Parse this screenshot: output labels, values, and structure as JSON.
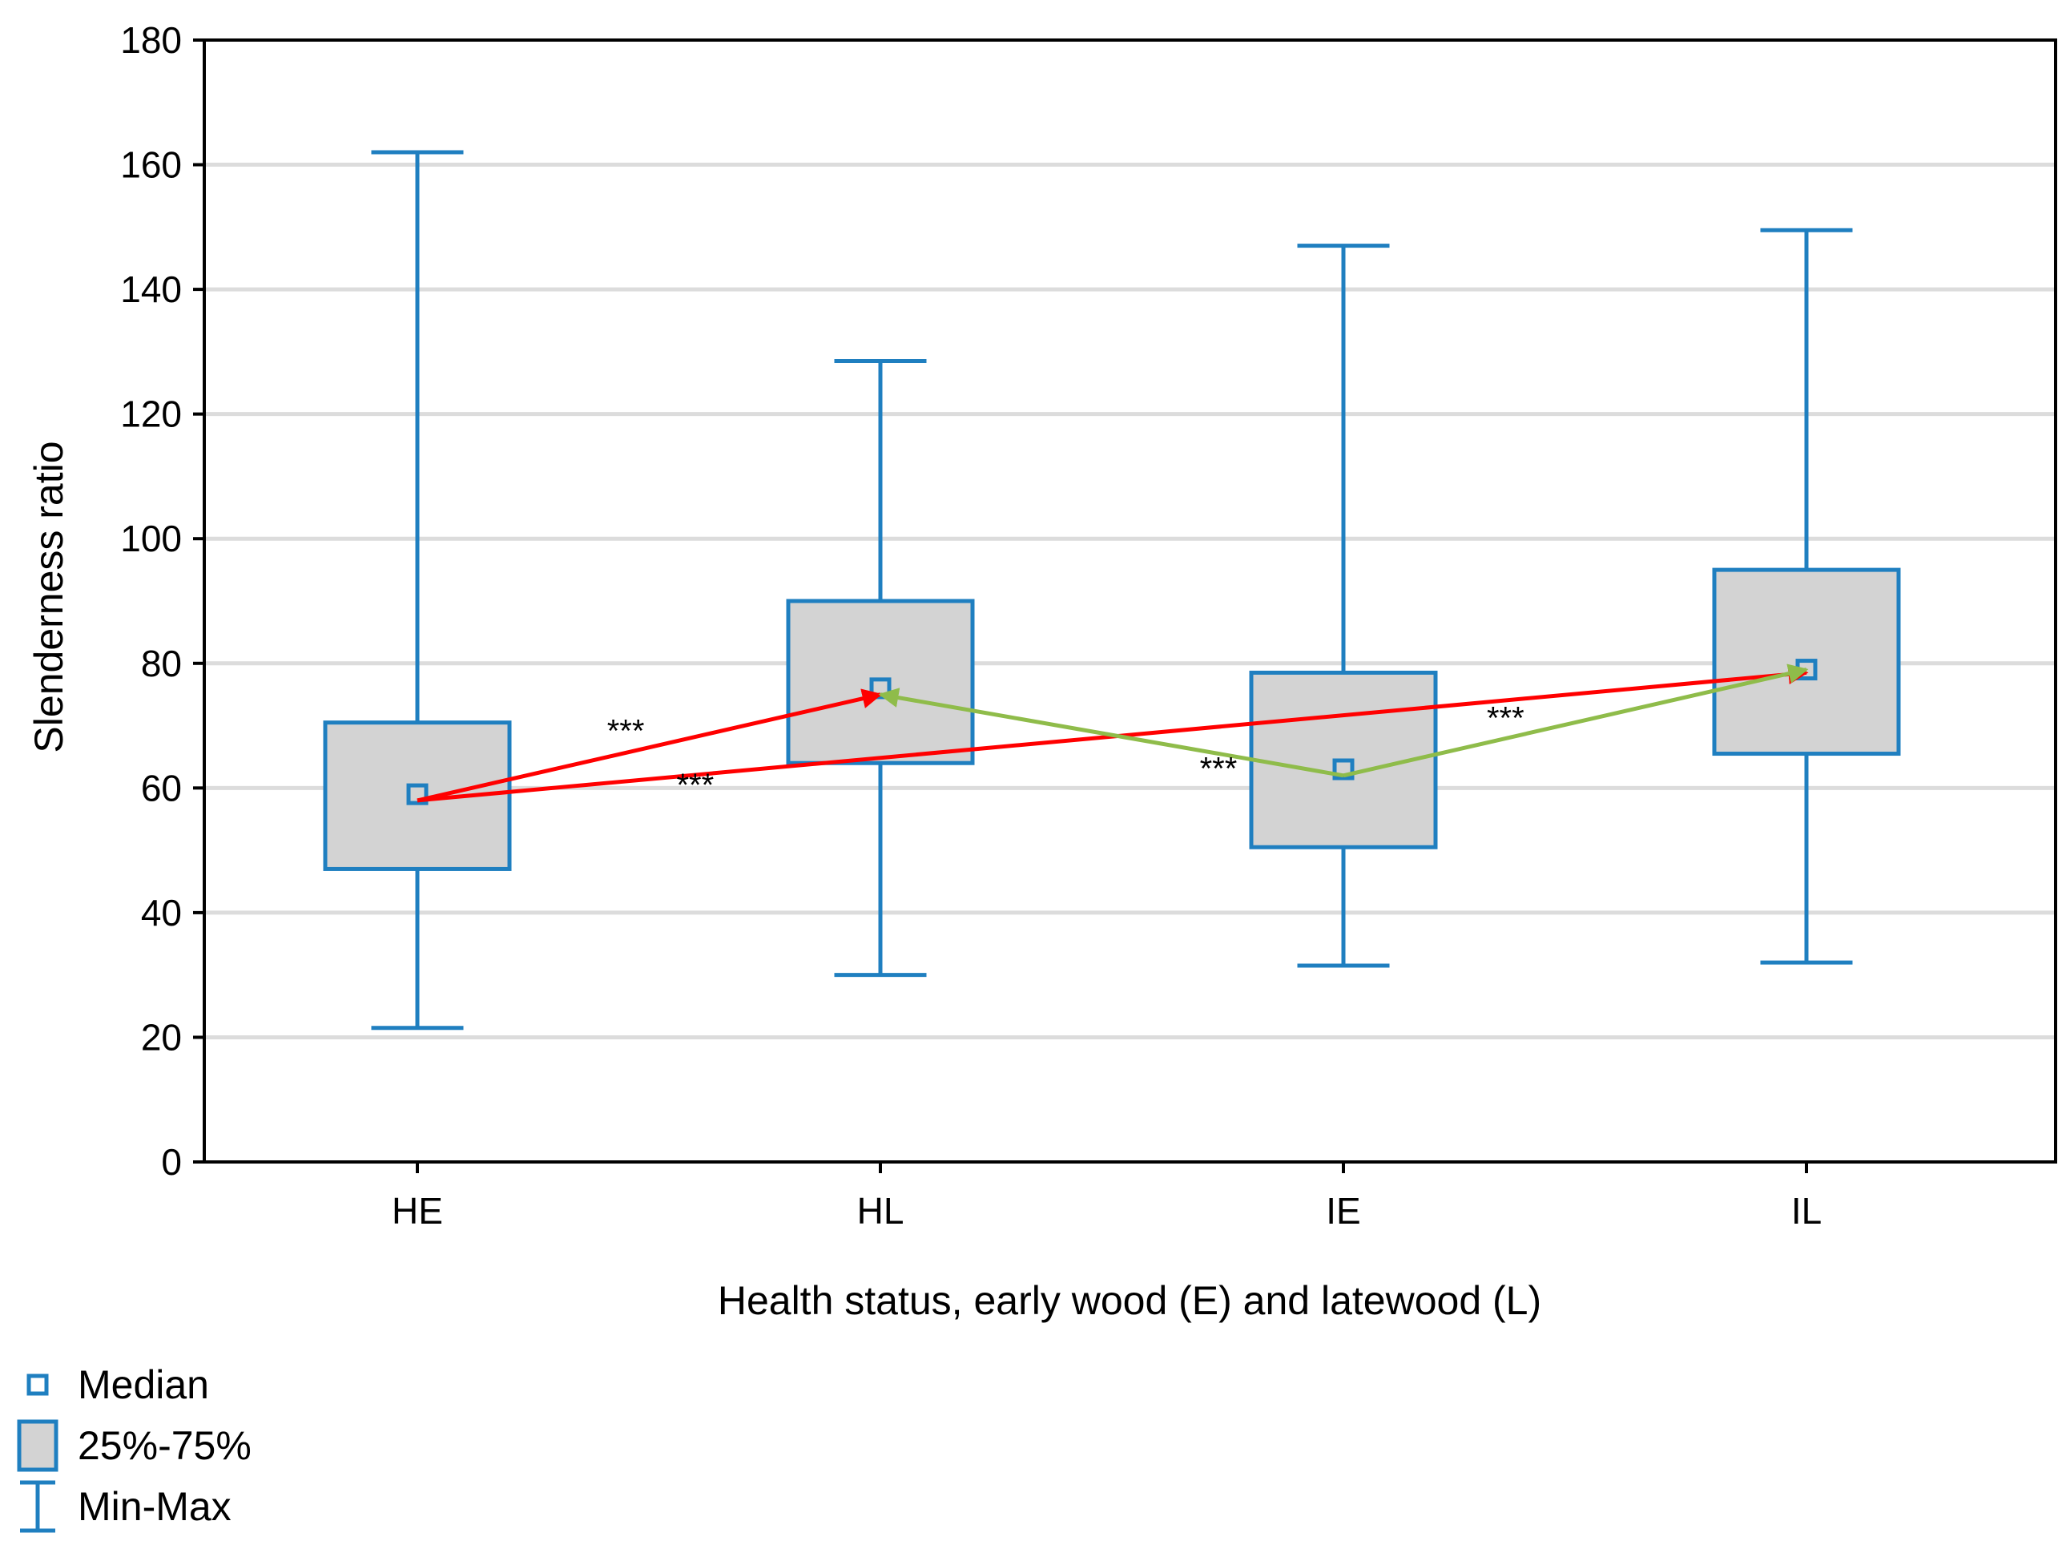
{
  "chart_data": {
    "type": "box",
    "xlabel": "Health status, early wood (E) and latewood (L)",
    "ylabel": "Slenderness ratio",
    "ylim": [
      0,
      180
    ],
    "yticks": [
      0,
      20,
      40,
      60,
      80,
      100,
      120,
      140,
      160,
      180
    ],
    "grid": true,
    "categories": [
      "HE",
      "HL",
      "IE",
      "IL"
    ],
    "boxes": [
      {
        "category": "HE",
        "min": 21.5,
        "q1": 47,
        "median": 59,
        "q3": 70.5,
        "max": 162
      },
      {
        "category": "HL",
        "min": 30,
        "q1": 64,
        "median": 76,
        "q3": 90,
        "max": 128.5
      },
      {
        "category": "IE",
        "min": 31.5,
        "q1": 50.5,
        "median": 63,
        "q3": 78.5,
        "max": 147
      },
      {
        "category": "IL",
        "min": 32,
        "q1": 65.5,
        "median": 79,
        "q3": 95,
        "max": 149.5
      }
    ],
    "comparisons": [
      {
        "from": "HE",
        "to": "HL",
        "from_value": 58,
        "to_value": 75,
        "color": "#ff0000",
        "label": "***",
        "double_arrow": false,
        "label_at": 0.45,
        "label_offset": -14
      },
      {
        "from": "HE",
        "to": "IL",
        "from_value": 58,
        "to_value": 78.5,
        "color": "#ff0000",
        "label": "***",
        "double_arrow": false,
        "label_at": 0.2,
        "label_offset": 26
      },
      {
        "from": "IE",
        "to": "HL",
        "from_value": 62,
        "to_value": 75,
        "color": "#8fbc4a",
        "label": "***",
        "double_arrow": false,
        "label_at": 0.27,
        "label_offset": 32
      },
      {
        "from": "IE",
        "to": "IL",
        "from_value": 62,
        "to_value": 79,
        "color": "#8fbc4a",
        "label": "***",
        "double_arrow": false,
        "label_at": 0.35,
        "label_offset": -12
      }
    ],
    "legend": {
      "position": "bottom-left",
      "items": [
        {
          "symbol": "median",
          "label": "Median"
        },
        {
          "symbol": "box",
          "label": "25%-75%"
        },
        {
          "symbol": "whisker",
          "label": "Min-Max"
        }
      ]
    },
    "colors": {
      "box_stroke": "#1f7fc0",
      "box_fill": "#d3d3d3",
      "grid": "#dcdcdc",
      "axis": "#000000",
      "red_arrow": "#ff0000",
      "green_arrow": "#8fbc4a"
    }
  }
}
